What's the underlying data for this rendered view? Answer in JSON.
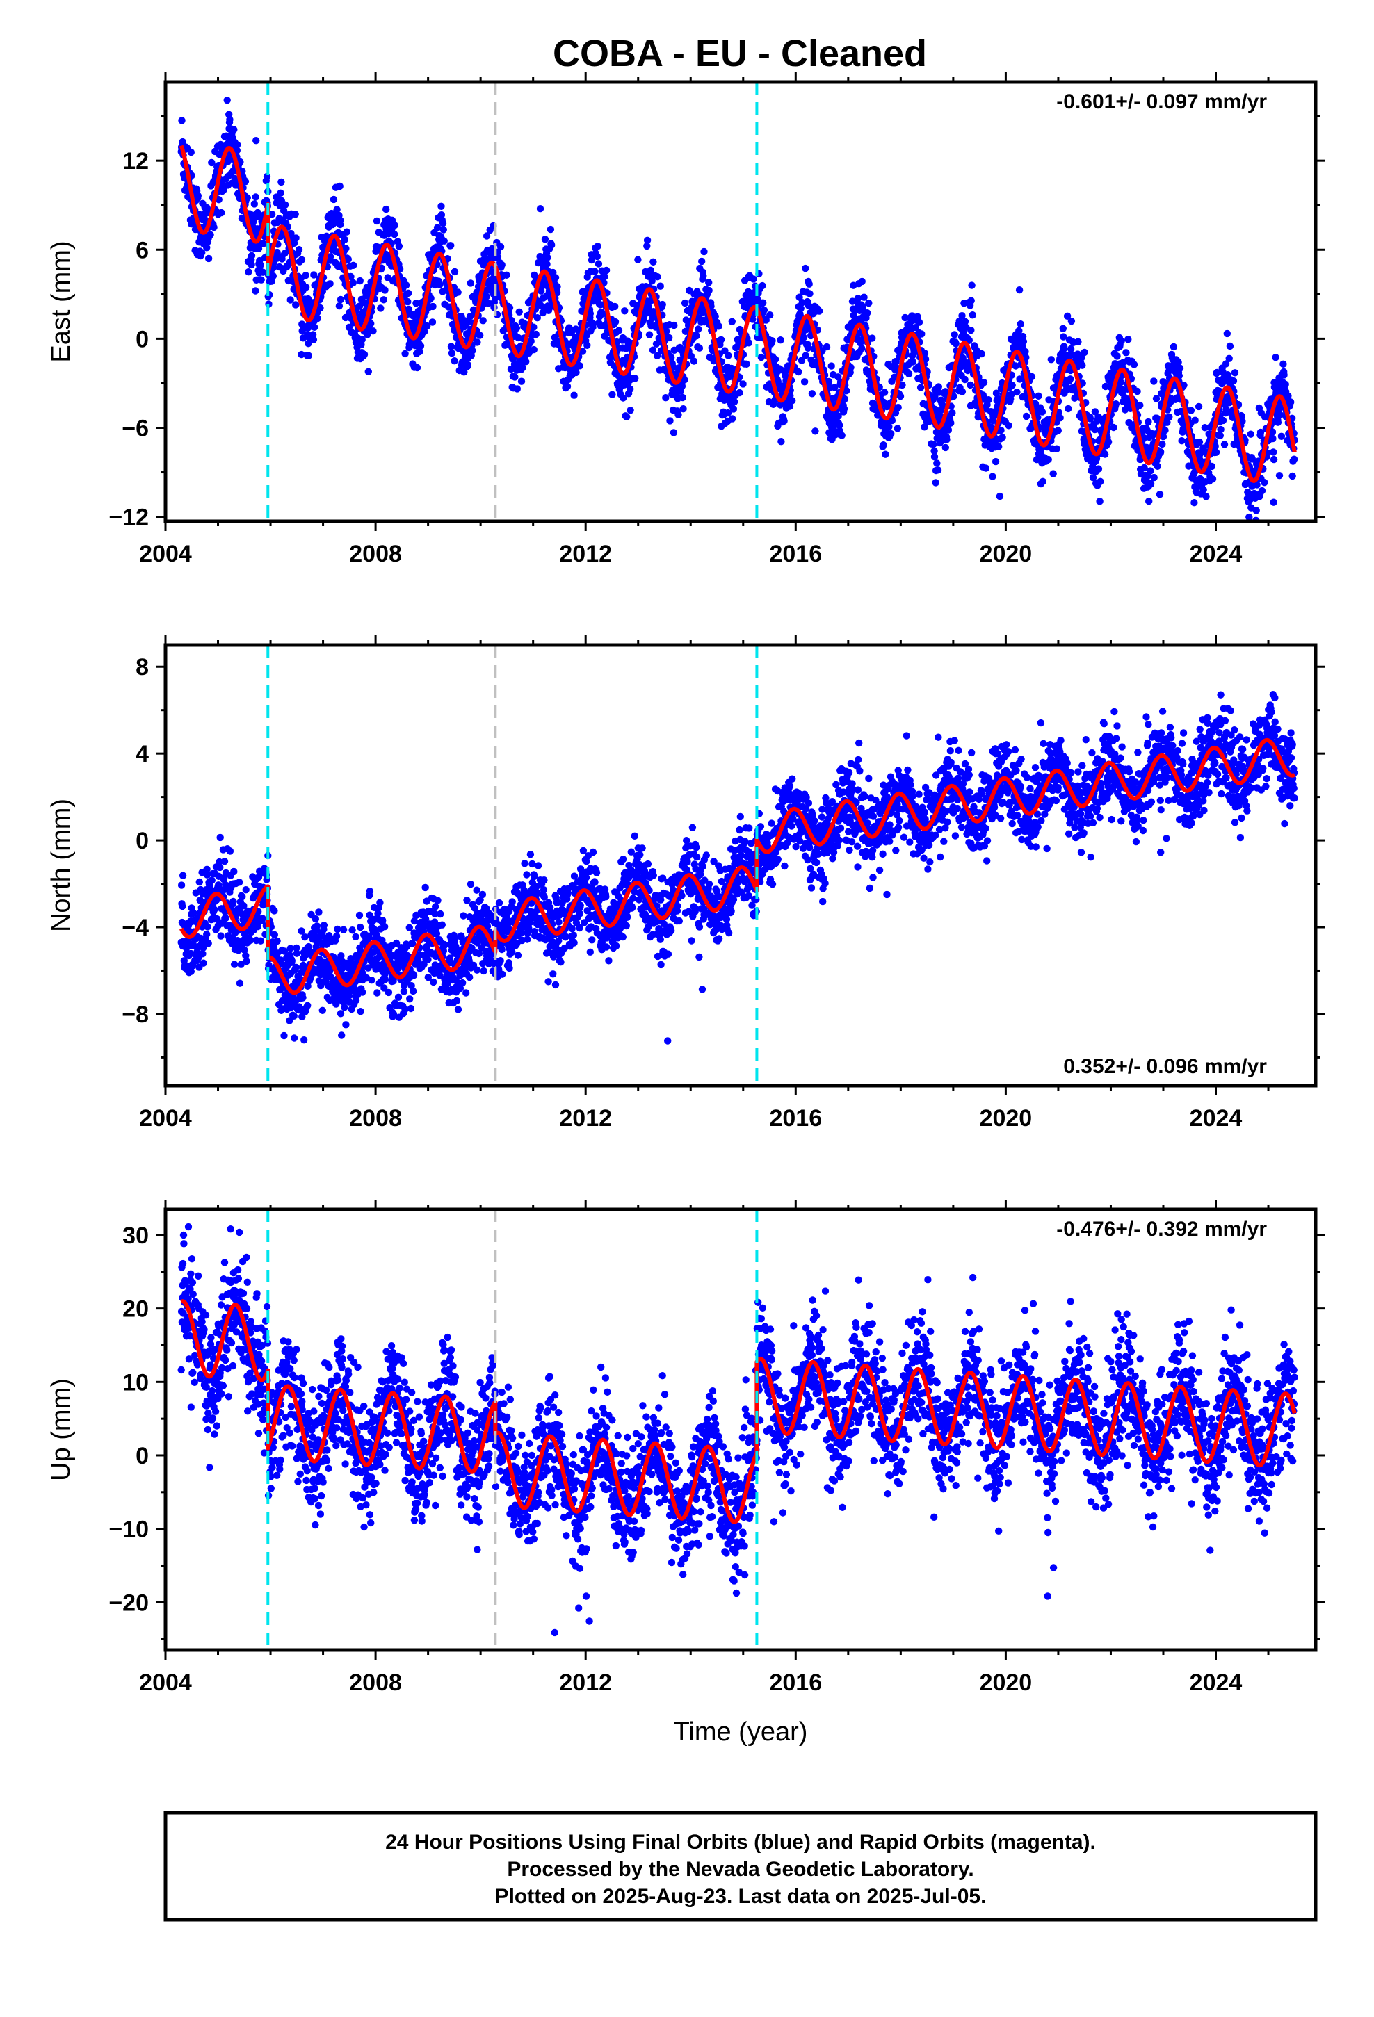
{
  "title": "COBA  - EU - Cleaned",
  "colors": {
    "points": "#0000ff",
    "model": "#ff0000",
    "break_antenna": "#00e5ee",
    "break_other": "#c0c0c0",
    "frame": "#000000"
  },
  "footer": {
    "line1": "24 Hour Positions Using Final Orbits (blue) and Rapid Orbits (magenta).",
    "line2": "Processed by the Nevada Geodetic Laboratory.",
    "line3": "Plotted on 2025-Aug-23. Last data on 2025-Jul-05."
  },
  "chart_data": [
    {
      "type": "scatter",
      "ylabel": "East (mm)",
      "xlabel": "",
      "rate_text": "-0.601+/- 0.097 mm/yr",
      "rate_position": "top-right",
      "xlim": [
        2004.0,
        2025.9
      ],
      "ylim": [
        -12.3,
        17.3
      ],
      "xticks": [
        2004,
        2008,
        2012,
        2016,
        2020,
        2024
      ],
      "xtick_labels": [
        "2004",
        "2008",
        "2012",
        "2016",
        "2020",
        "2024"
      ],
      "yticks": [
        -12,
        -6,
        0,
        6,
        12
      ],
      "ytick_labels": [
        "−12",
        "−6",
        "0",
        "6",
        "12"
      ],
      "breaks": [
        {
          "x": 2005.95,
          "kind": "antenna"
        },
        {
          "x": 2010.28,
          "kind": "other"
        },
        {
          "x": 2015.26,
          "kind": "antenna"
        }
      ],
      "model_series": [
        {
          "name": "model",
          "x": [
            2004.3,
            2005.95
          ],
          "slope": -0.601,
          "offset": 10.4,
          "amp": 3.0,
          "phase": 0.2
        },
        {
          "name": "model",
          "x": [
            2005.95,
            2025.5
          ],
          "slope": -0.601,
          "offset": 4.7,
          "amp": 3.0,
          "phase": 0.2
        }
      ],
      "scatter_noise": 1.3,
      "first_data": 2004.3,
      "last_data": 2025.5
    },
    {
      "type": "scatter",
      "ylabel": "North (mm)",
      "xlabel": "",
      "rate_text": "0.352+/- 0.096 mm/yr",
      "rate_position": "bottom-right",
      "xlim": [
        2004.0,
        2025.9
      ],
      "ylim": [
        -11.3,
        9.0
      ],
      "xticks": [
        2004,
        2008,
        2012,
        2016,
        2020,
        2024
      ],
      "xtick_labels": [
        "2004",
        "2008",
        "2012",
        "2016",
        "2020",
        "2024"
      ],
      "yticks": [
        -8,
        -4,
        0,
        4,
        8
      ],
      "ytick_labels": [
        "−8",
        "−4",
        "0",
        "4",
        "8"
      ],
      "breaks": [
        {
          "x": 2005.95,
          "kind": "antenna"
        },
        {
          "x": 2010.28,
          "kind": "other"
        },
        {
          "x": 2015.26,
          "kind": "antenna"
        }
      ],
      "model_series": [
        {
          "name": "model",
          "x": [
            2004.3,
            2005.95
          ],
          "slope": 0.352,
          "offset": -3.6,
          "amp": 0.9,
          "phase": 1.8
        },
        {
          "name": "model",
          "x": [
            2005.95,
            2010.28
          ],
          "slope": 0.352,
          "offset": -6.3,
          "amp": 0.9,
          "phase": 1.8
        },
        {
          "name": "model",
          "x": [
            2010.28,
            2015.26
          ],
          "slope": 0.352,
          "offset": -3.8,
          "amp": 0.9,
          "phase": 1.8
        },
        {
          "name": "model",
          "x": [
            2015.26,
            2025.5
          ],
          "slope": 0.352,
          "offset": 0.3,
          "amp": 0.9,
          "phase": 1.8
        }
      ],
      "scatter_noise": 0.9,
      "first_data": 2004.3,
      "last_data": 2025.5
    },
    {
      "type": "scatter",
      "ylabel": "Up (mm)",
      "xlabel": "Time (year)",
      "rate_text": "-0.476+/- 0.392 mm/yr",
      "rate_position": "top-right",
      "xlim": [
        2004.0,
        2025.9
      ],
      "ylim": [
        -26.5,
        33.5
      ],
      "xticks": [
        2004,
        2008,
        2012,
        2016,
        2020,
        2024
      ],
      "xtick_labels": [
        "2004",
        "2008",
        "2012",
        "2016",
        "2020",
        "2024"
      ],
      "yticks": [
        -20,
        -10,
        0,
        10,
        20,
        30
      ],
      "ytick_labels": [
        "−20",
        "−10",
        "0",
        "10",
        "20",
        "30"
      ],
      "breaks": [
        {
          "x": 2005.95,
          "kind": "antenna"
        },
        {
          "x": 2010.28,
          "kind": "other"
        },
        {
          "x": 2015.26,
          "kind": "antenna"
        }
      ],
      "model_series": [
        {
          "name": "model",
          "x": [
            2004.3,
            2005.95
          ],
          "slope": -0.476,
          "offset": 16.0,
          "amp": 5.0,
          "phase": -0.5
        },
        {
          "name": "model",
          "x": [
            2005.95,
            2010.28
          ],
          "slope": -0.476,
          "offset": 4.6,
          "amp": 5.0,
          "phase": -0.5
        },
        {
          "name": "model",
          "x": [
            2010.28,
            2015.26
          ],
          "slope": -0.476,
          "offset": -1.9,
          "amp": 5.0,
          "phase": -0.5
        },
        {
          "name": "model",
          "x": [
            2015.26,
            2025.5
          ],
          "slope": -0.476,
          "offset": 8.2,
          "amp": 5.0,
          "phase": -0.5
        }
      ],
      "scatter_noise": 4.0,
      "first_data": 2004.3,
      "last_data": 2025.5
    }
  ]
}
